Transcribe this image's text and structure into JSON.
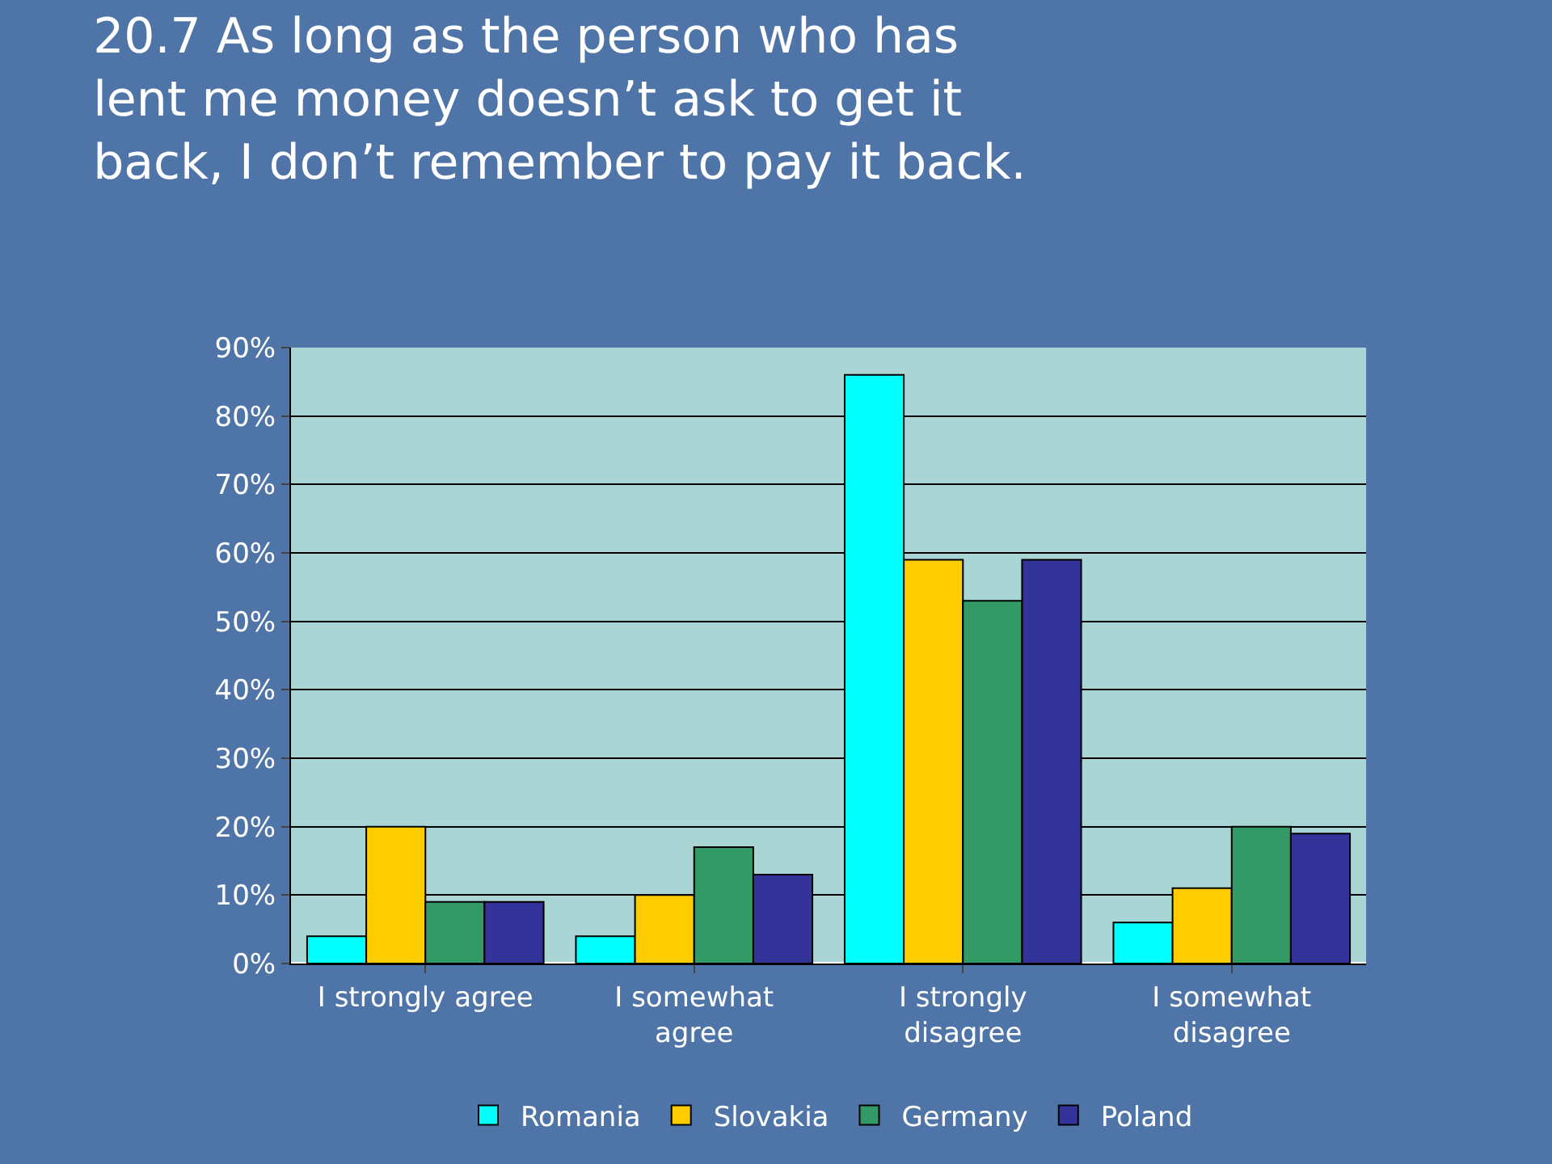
{
  "chart_data": {
    "type": "bar",
    "title": "20.7 As long as the person who has\nlent me money doesn’t ask to get it\nback, I don’t remember to pay it back.",
    "categories": [
      "I strongly agree",
      "I somewhat\nagree",
      "I strongly\ndisagree",
      "I somewhat\ndisagree"
    ],
    "series": [
      {
        "name": "Romania",
        "color": "#00ffff",
        "values": [
          4,
          4,
          86,
          6
        ]
      },
      {
        "name": "Slovakia",
        "color": "#ffcc00",
        "values": [
          20,
          10,
          59,
          11
        ]
      },
      {
        "name": "Germany",
        "color": "#339966",
        "values": [
          9,
          17,
          53,
          20
        ]
      },
      {
        "name": "Poland",
        "color": "#333399",
        "values": [
          9,
          13,
          59,
          19
        ]
      }
    ],
    "ylim": [
      0,
      90
    ],
    "yticks": [
      {
        "value": 0,
        "label": "0%"
      },
      {
        "value": 10,
        "label": "10%"
      },
      {
        "value": 20,
        "label": "20%"
      },
      {
        "value": 30,
        "label": "30%"
      },
      {
        "value": 40,
        "label": "40%"
      },
      {
        "value": 50,
        "label": "50%"
      },
      {
        "value": 60,
        "label": "60%"
      },
      {
        "value": 70,
        "label": "70%"
      },
      {
        "value": 80,
        "label": "80%"
      },
      {
        "value": 90,
        "label": "90%"
      }
    ],
    "grid": "y",
    "legend": "bottom"
  }
}
